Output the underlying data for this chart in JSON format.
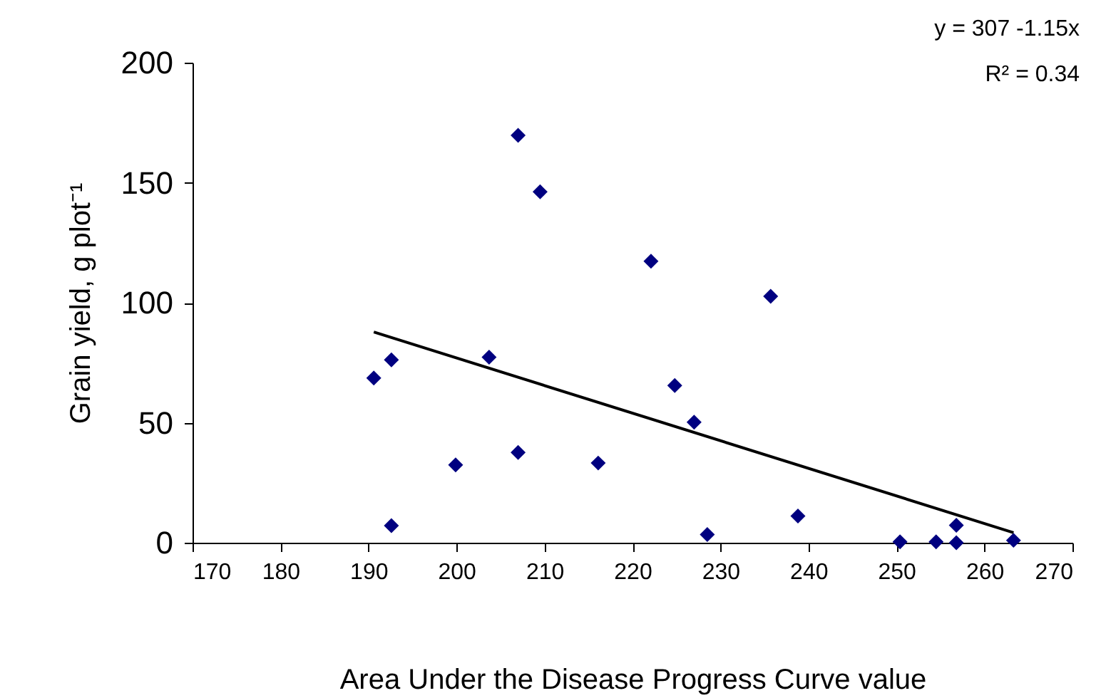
{
  "chart_data": {
    "type": "scatter",
    "xlabel": "Area Under the Disease Progress Curve value",
    "ylabel": "Grain yield, g plot⁻¹",
    "annotations": [
      "y = 307 -1.15x",
      "R² = 0.34"
    ],
    "xlim": [
      170,
      270
    ],
    "xticks": [
      170,
      180,
      190,
      200,
      210,
      220,
      230,
      240,
      250,
      260,
      270
    ],
    "ylim": [
      0,
      200
    ],
    "yticks": [
      0,
      50,
      100,
      150,
      200
    ],
    "grid": false,
    "series": [
      {
        "marker": "diamond",
        "color": "#000080",
        "x": [
          190.6,
          192.6,
          192.6,
          199.9,
          203.7,
          207.0,
          207.0,
          209.5,
          216.1,
          222.1,
          224.8,
          227.0,
          228.5,
          235.7,
          238.8,
          250.4,
          254.5,
          256.8,
          256.8,
          263.3
        ],
        "values": [
          68.6,
          76.2,
          7.1,
          32.4,
          77.3,
          169.7,
          37.6,
          146.2,
          33.2,
          117.3,
          65.5,
          50.2,
          3.4,
          102.7,
          11.1,
          0.4,
          0.4,
          7.3,
          0,
          1.0
        ]
      },
      {
        "type": "line",
        "color": "#000000",
        "x": [
          190.6,
          263.3
        ],
        "values": [
          87.8,
          4.2
        ]
      }
    ]
  }
}
